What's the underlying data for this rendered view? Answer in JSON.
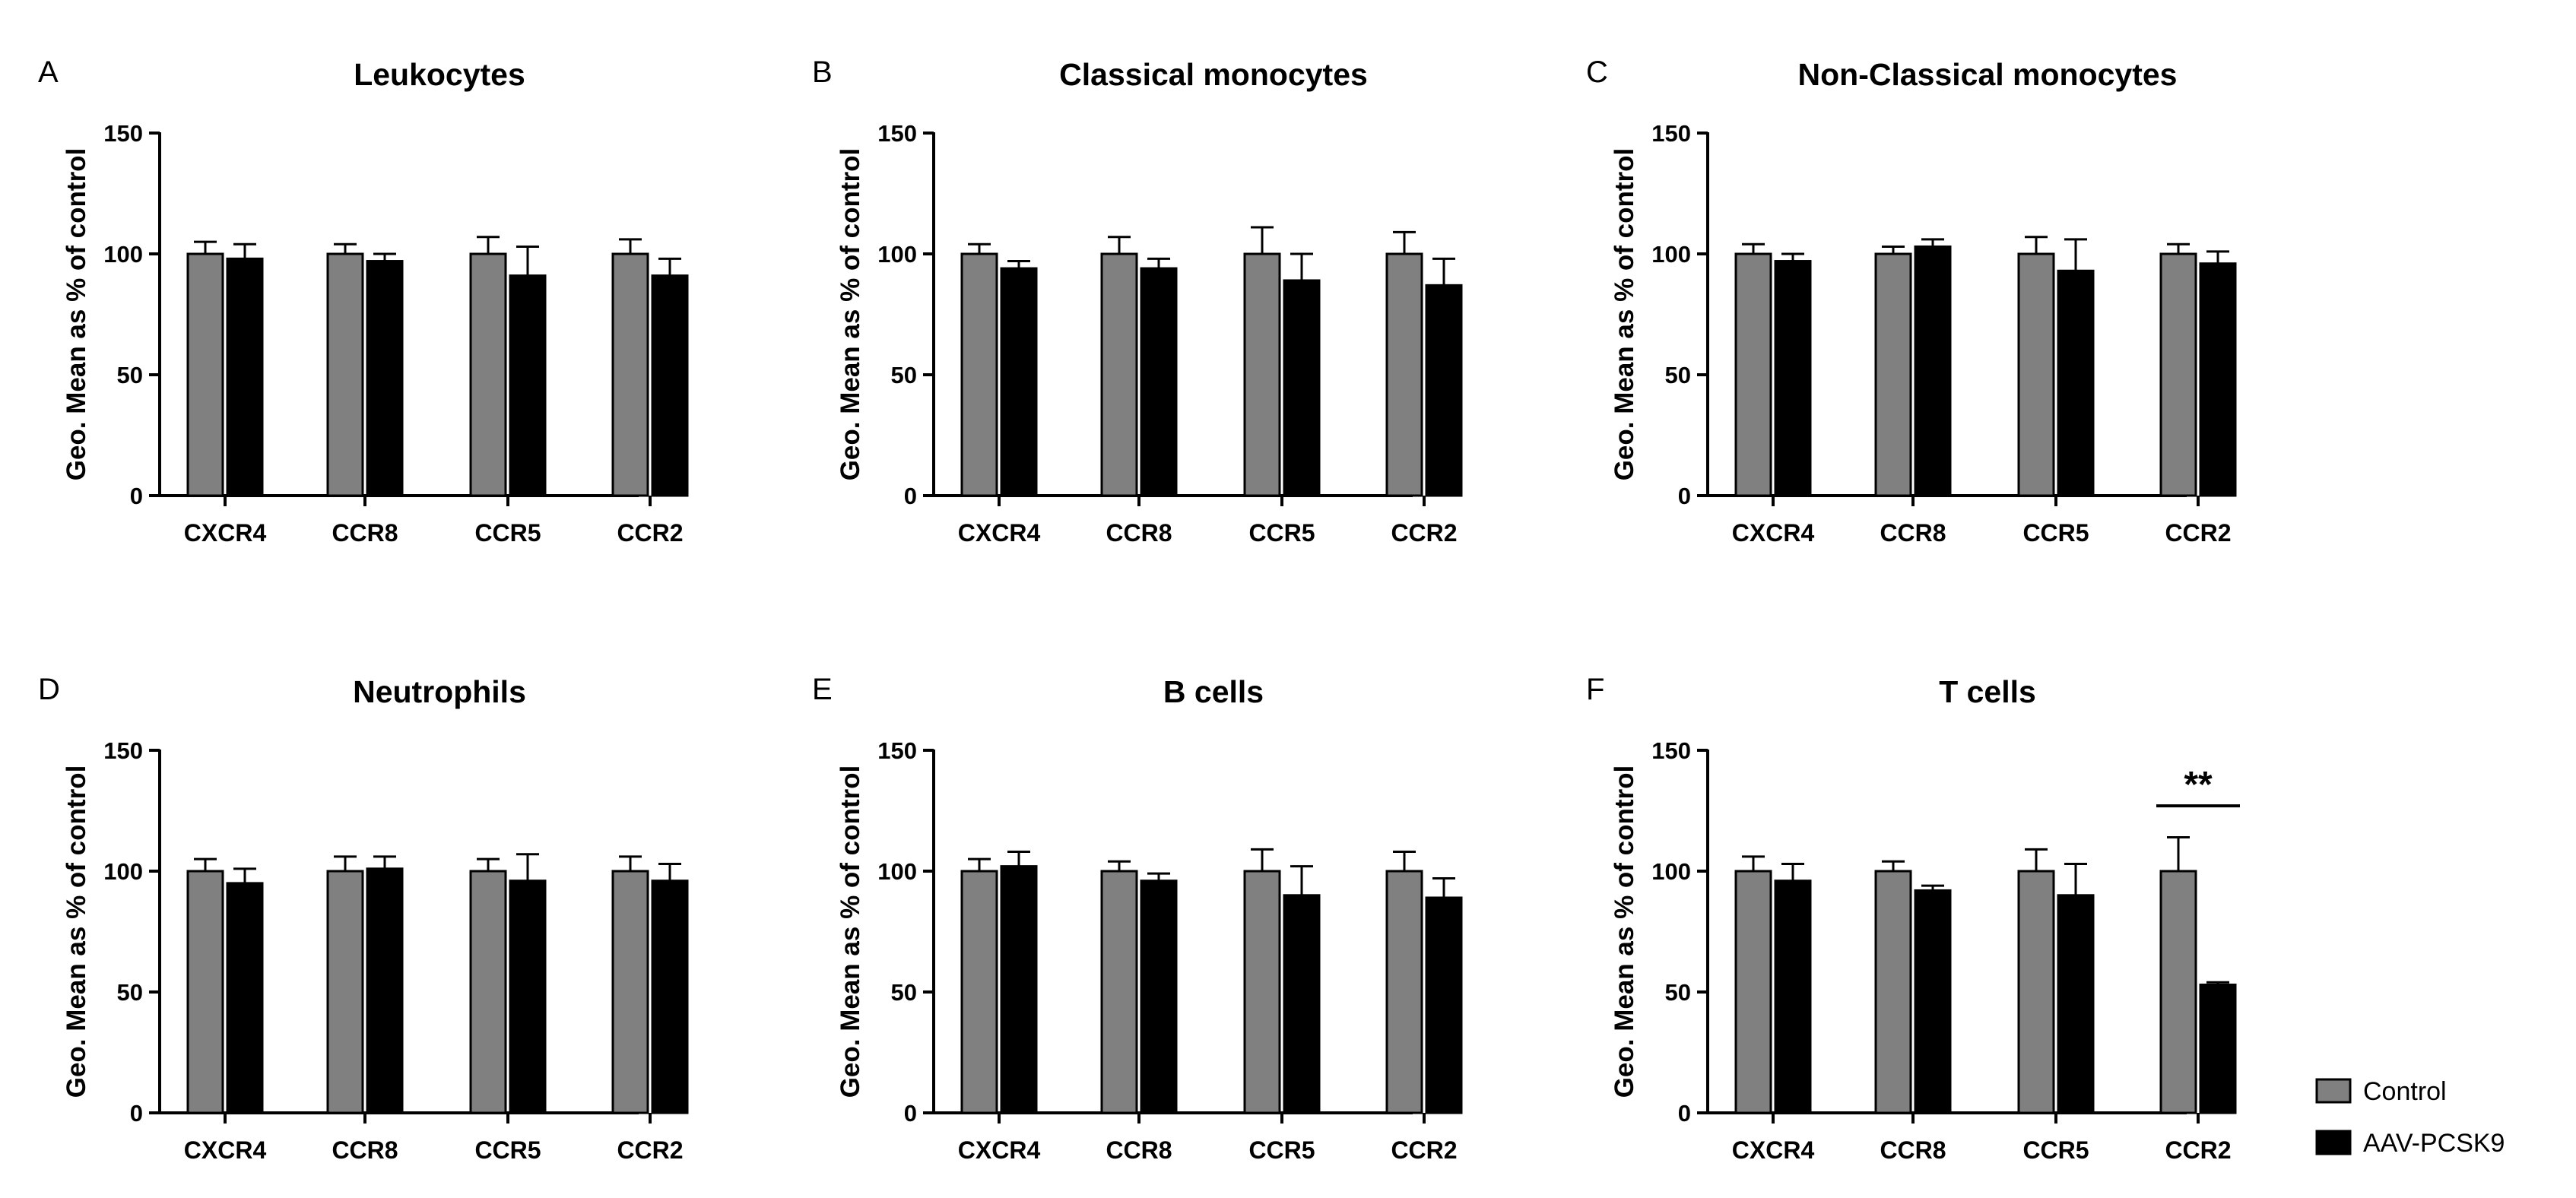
{
  "chart_data": [
    {
      "type": "bar",
      "panel_label": "A",
      "title": "Leukocytes",
      "ylabel": "Geo. Mean as % of control",
      "xlabel": "",
      "ylim": [
        0,
        150
      ],
      "yticks": [
        0,
        50,
        100,
        150
      ],
      "categories": [
        "CXCR4",
        "CCR8",
        "CCR5",
        "CCR2"
      ],
      "series": [
        {
          "name": "Control",
          "values": [
            100,
            100,
            100,
            100
          ],
          "errors": [
            5,
            4,
            7,
            6
          ]
        },
        {
          "name": "AAV-PCSK9",
          "values": [
            98,
            97,
            91,
            91
          ],
          "errors": [
            6,
            3,
            12,
            7
          ]
        }
      ],
      "annotations": []
    },
    {
      "type": "bar",
      "panel_label": "B",
      "title": "Classical monocytes",
      "ylabel": "Geo. Mean as % of control",
      "xlabel": "",
      "ylim": [
        0,
        150
      ],
      "yticks": [
        0,
        50,
        100,
        150
      ],
      "categories": [
        "CXCR4",
        "CCR8",
        "CCR5",
        "CCR2"
      ],
      "series": [
        {
          "name": "Control",
          "values": [
            100,
            100,
            100,
            100
          ],
          "errors": [
            4,
            7,
            11,
            9
          ]
        },
        {
          "name": "AAV-PCSK9",
          "values": [
            94,
            94,
            89,
            87
          ],
          "errors": [
            3,
            4,
            11,
            11
          ]
        }
      ],
      "annotations": []
    },
    {
      "type": "bar",
      "panel_label": "C",
      "title": "Non-Classical monocytes",
      "ylabel": "Geo. Mean as % of control",
      "xlabel": "",
      "ylim": [
        0,
        150
      ],
      "yticks": [
        0,
        50,
        100,
        150
      ],
      "categories": [
        "CXCR4",
        "CCR8",
        "CCR5",
        "CCR2"
      ],
      "series": [
        {
          "name": "Control",
          "values": [
            100,
            100,
            100,
            100
          ],
          "errors": [
            4,
            3,
            7,
            4
          ]
        },
        {
          "name": "AAV-PCSK9",
          "values": [
            97,
            103,
            93,
            96
          ],
          "errors": [
            3,
            3,
            13,
            5
          ]
        }
      ],
      "annotations": []
    },
    {
      "type": "bar",
      "panel_label": "D",
      "title": "Neutrophils",
      "ylabel": "Geo. Mean as % of control",
      "xlabel": "",
      "ylim": [
        0,
        150
      ],
      "yticks": [
        0,
        50,
        100,
        150
      ],
      "categories": [
        "CXCR4",
        "CCR8",
        "CCR5",
        "CCR2"
      ],
      "series": [
        {
          "name": "Control",
          "values": [
            100,
            100,
            100,
            100
          ],
          "errors": [
            5,
            6,
            5,
            6
          ]
        },
        {
          "name": "AAV-PCSK9",
          "values": [
            95,
            101,
            96,
            96
          ],
          "errors": [
            6,
            5,
            11,
            7
          ]
        }
      ],
      "annotations": []
    },
    {
      "type": "bar",
      "panel_label": "E",
      "title": "B cells",
      "ylabel": "Geo. Mean as % of control",
      "xlabel": "",
      "ylim": [
        0,
        150
      ],
      "yticks": [
        0,
        50,
        100,
        150
      ],
      "categories": [
        "CXCR4",
        "CCR8",
        "CCR5",
        "CCR2"
      ],
      "series": [
        {
          "name": "Control",
          "values": [
            100,
            100,
            100,
            100
          ],
          "errors": [
            5,
            4,
            9,
            8
          ]
        },
        {
          "name": "AAV-PCSK9",
          "values": [
            102,
            96,
            90,
            89
          ],
          "errors": [
            6,
            3,
            12,
            8
          ]
        }
      ],
      "annotations": []
    },
    {
      "type": "bar",
      "panel_label": "F",
      "title": "T cells",
      "ylabel": "Geo. Mean as % of control",
      "xlabel": "",
      "ylim": [
        0,
        150
      ],
      "yticks": [
        0,
        50,
        100,
        150
      ],
      "categories": [
        "CXCR4",
        "CCR8",
        "CCR5",
        "CCR2"
      ],
      "series": [
        {
          "name": "Control",
          "values": [
            100,
            100,
            100,
            100
          ],
          "errors": [
            6,
            4,
            9,
            14
          ]
        },
        {
          "name": "AAV-PCSK9",
          "values": [
            96,
            92,
            90,
            53
          ],
          "errors": [
            7,
            2,
            13,
            1
          ]
        }
      ],
      "annotations": [
        {
          "text": "**",
          "category": "CCR2",
          "y": 127
        }
      ]
    }
  ],
  "legend": {
    "entries": [
      {
        "label": "Control",
        "color": "#808080"
      },
      {
        "label": "AAV-PCSK9",
        "color": "#000000"
      }
    ],
    "position": "bottom-right"
  },
  "colors": {
    "control": "#808080",
    "treatment": "#000000",
    "axis": "#000000"
  }
}
